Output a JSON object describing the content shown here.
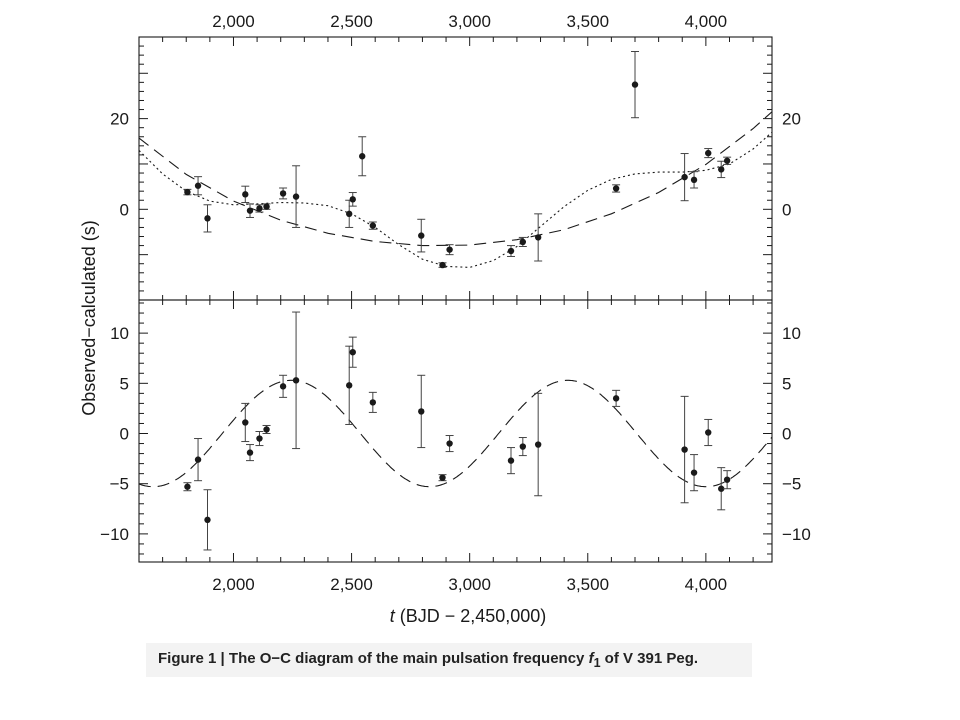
{
  "chart_data": [
    {
      "type": "scatter",
      "panel": "top",
      "x_top_tick_labels": [
        "2,000",
        "2,500",
        "3,000",
        "3,500",
        "4,000"
      ],
      "x_ticks": [
        2000,
        2500,
        3000,
        3500,
        4000
      ],
      "y_ticks": [
        0,
        20
      ],
      "y_tick_labels": [
        "0",
        "20"
      ],
      "xlim": [
        1600,
        4280
      ],
      "ylim": [
        -20,
        38
      ],
      "series": [
        {
          "marker": "filled-circle",
          "points": [
            {
              "x": 1805,
              "y": 3.8,
              "err": 0.6
            },
            {
              "x": 1850,
              "y": 5.2,
              "err": 2.0
            },
            {
              "x": 1890,
              "y": -2.0,
              "err": 3.0
            },
            {
              "x": 2050,
              "y": 3.3,
              "err": 1.8
            },
            {
              "x": 2070,
              "y": -0.3,
              "err": 1.5
            },
            {
              "x": 2110,
              "y": 0.2,
              "err": 0.8
            },
            {
              "x": 2140,
              "y": 0.6,
              "err": 0.6
            },
            {
              "x": 2210,
              "y": 3.5,
              "err": 1.2
            },
            {
              "x": 2265,
              "y": 2.8,
              "err": 6.8
            },
            {
              "x": 2490,
              "y": -1.0,
              "err": 3.0
            },
            {
              "x": 2505,
              "y": 2.2,
              "err": 1.5
            },
            {
              "x": 2545,
              "y": 11.7,
              "err": 4.3
            },
            {
              "x": 2590,
              "y": -3.6,
              "err": 0.8
            },
            {
              "x": 2795,
              "y": -5.8,
              "err": 3.6
            },
            {
              "x": 2885,
              "y": -12.3,
              "err": 0.5
            },
            {
              "x": 2915,
              "y": -8.9,
              "err": 1.1
            },
            {
              "x": 3175,
              "y": -9.2,
              "err": 1.2
            },
            {
              "x": 3225,
              "y": -7.2,
              "err": 1.0
            },
            {
              "x": 3290,
              "y": -6.2,
              "err": 5.2
            },
            {
              "x": 3620,
              "y": 4.6,
              "err": 0.8
            },
            {
              "x": 3700,
              "y": 27.5,
              "err": 7.3
            },
            {
              "x": 3910,
              "y": 7.1,
              "err": 5.2
            },
            {
              "x": 3950,
              "y": 6.5,
              "err": 1.8
            },
            {
              "x": 4010,
              "y": 12.4,
              "err": 1.0
            },
            {
              "x": 4065,
              "y": 8.8,
              "err": 1.8
            },
            {
              "x": 4090,
              "y": 10.7,
              "err": 0.8
            }
          ]
        },
        {
          "style": "dashed",
          "x": [
            1600,
            1800,
            2000,
            2200,
            2400,
            2600,
            2800,
            3000,
            3200,
            3400,
            3600,
            3800,
            4000,
            4200,
            4280
          ],
          "y": [
            15.7,
            7.7,
            1.8,
            -2.4,
            -5.3,
            -7.1,
            -8.0,
            -7.9,
            -6.7,
            -4.5,
            -1.0,
            3.7,
            9.9,
            17.8,
            21.5
          ]
        },
        {
          "style": "dotted",
          "x": [
            1600,
            1700,
            1800,
            1900,
            2000,
            2100,
            2200,
            2300,
            2400,
            2500,
            2600,
            2700,
            2800,
            2900,
            3000,
            3100,
            3200,
            3300,
            3400,
            3500,
            3600,
            3700,
            3800,
            3900,
            4000,
            4100,
            4200,
            4280
          ],
          "y": [
            13.0,
            7.8,
            4.0,
            1.8,
            1.0,
            1.2,
            1.5,
            1.4,
            0.8,
            -1.0,
            -4.0,
            -7.8,
            -11.0,
            -12.6,
            -12.8,
            -11.3,
            -8.2,
            -3.8,
            0.6,
            4.2,
            6.6,
            7.8,
            8.2,
            8.2,
            8.6,
            10.0,
            13.3,
            17.0
          ]
        }
      ]
    },
    {
      "type": "scatter",
      "panel": "bottom",
      "xlabel_italic": "t",
      "xlabel_rest": " (BJD − 2,450,000)",
      "x_ticks": [
        2000,
        2500,
        3000,
        3500,
        4000
      ],
      "x_tick_labels": [
        "2,000",
        "2,500",
        "3,000",
        "3,500",
        "4,000"
      ],
      "y_ticks": [
        -10,
        -5,
        0,
        5,
        10
      ],
      "y_tick_labels": [
        "−10",
        "−5",
        "0",
        "5",
        "10"
      ],
      "xlim": [
        1600,
        4280
      ],
      "ylim": [
        -12.8,
        13.3
      ],
      "series": [
        {
          "marker": "filled-circle",
          "points": [
            {
              "x": 1805,
              "y": -5.3,
              "err": 0.4
            },
            {
              "x": 1850,
              "y": -2.6,
              "err": 2.1
            },
            {
              "x": 1890,
              "y": -8.6,
              "err": 3.0
            },
            {
              "x": 2050,
              "y": 1.1,
              "err": 1.9
            },
            {
              "x": 2070,
              "y": -1.9,
              "err": 0.8
            },
            {
              "x": 2110,
              "y": -0.5,
              "err": 0.7
            },
            {
              "x": 2140,
              "y": 0.4,
              "err": 0.4
            },
            {
              "x": 2210,
              "y": 4.7,
              "err": 1.1
            },
            {
              "x": 2265,
              "y": 5.3,
              "err": 6.8
            },
            {
              "x": 2490,
              "y": 4.8,
              "err": 3.9
            },
            {
              "x": 2505,
              "y": 8.1,
              "err": 1.5
            },
            {
              "x": 2590,
              "y": 3.1,
              "err": 1.0
            },
            {
              "x": 2795,
              "y": 2.2,
              "err": 3.6
            },
            {
              "x": 2885,
              "y": -4.4,
              "err": 0.3
            },
            {
              "x": 2915,
              "y": -1.0,
              "err": 0.8
            },
            {
              "x": 3175,
              "y": -2.7,
              "err": 1.3
            },
            {
              "x": 3225,
              "y": -1.3,
              "err": 0.9
            },
            {
              "x": 3290,
              "y": -1.1,
              "err": 5.1
            },
            {
              "x": 3620,
              "y": 3.5,
              "err": 0.8
            },
            {
              "x": 3910,
              "y": -1.6,
              "err": 5.3
            },
            {
              "x": 3950,
              "y": -3.9,
              "err": 1.8
            },
            {
              "x": 4010,
              "y": 0.1,
              "err": 1.3
            },
            {
              "x": 4065,
              "y": -5.5,
              "err": 2.1
            },
            {
              "x": 4090,
              "y": -4.6,
              "err": 0.9
            }
          ]
        },
        {
          "style": "dashed",
          "model": "sinusoid",
          "amplitude": 5.3,
          "period": 1170,
          "center": 2830
        }
      ]
    }
  ],
  "shared_ylabel": "Observed−calculated (s)",
  "caption": {
    "figure_label": "Figure 1",
    "separator": "|",
    "text_before": "The O−C diagram of the main pulsation frequency ",
    "symbol": "f",
    "subscript": "1",
    "text_after": " of V 391 Peg."
  }
}
